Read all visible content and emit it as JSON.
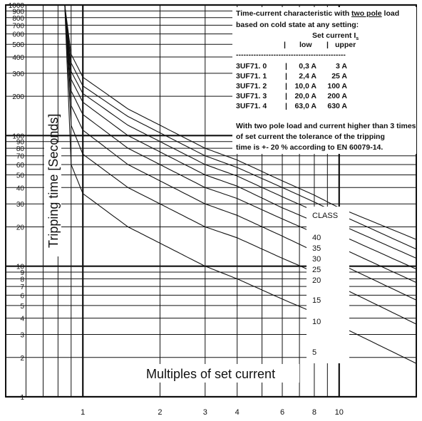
{
  "chart_data": {
    "type": "line",
    "xlabel": "Multiples of set current",
    "ylabel": "Tripping time [Seconds]",
    "x_scale": "log",
    "y_scale": "log",
    "xlim": [
      0.5,
      20
    ],
    "ylim": [
      1,
      1000
    ],
    "grid": true,
    "x_tick_labels": [
      {
        "v": 1,
        "t": "1"
      },
      {
        "v": 2,
        "t": "2"
      },
      {
        "v": 3,
        "t": "3"
      },
      {
        "v": 4,
        "t": "4"
      },
      {
        "v": 6,
        "t": "6"
      },
      {
        "v": 8,
        "t": "8"
      },
      {
        "v": 10,
        "t": "10"
      }
    ],
    "y_tick_labels": [
      {
        "v": 1000,
        "t": "1000"
      },
      {
        "v": 900,
        "t": "900"
      },
      {
        "v": 800,
        "t": "800"
      },
      {
        "v": 700,
        "t": "700"
      },
      {
        "v": 600,
        "t": "600"
      },
      {
        "v": 500,
        "t": "500"
      },
      {
        "v": 400,
        "t": "400"
      },
      {
        "v": 300,
        "t": "300"
      },
      {
        "v": 200,
        "t": "200"
      },
      {
        "v": 100,
        "t": "100"
      },
      {
        "v": 90,
        "t": "90"
      },
      {
        "v": 80,
        "t": "80"
      },
      {
        "v": 70,
        "t": "70"
      },
      {
        "v": 60,
        "t": "60"
      },
      {
        "v": 50,
        "t": "50"
      },
      {
        "v": 40,
        "t": "40"
      },
      {
        "v": 30,
        "t": "30"
      },
      {
        "v": 20,
        "t": "20"
      },
      {
        "v": 10,
        "t": "10"
      },
      {
        "v": 9,
        "t": "9"
      },
      {
        "v": 8,
        "t": "8"
      },
      {
        "v": 7,
        "t": "7"
      },
      {
        "v": 6,
        "t": "6"
      },
      {
        "v": 5,
        "t": "5"
      },
      {
        "v": 4,
        "t": "4"
      },
      {
        "v": 3,
        "t": "3"
      },
      {
        "v": 2,
        "t": "2"
      },
      {
        "v": 1,
        "t": "1"
      }
    ],
    "series": [
      {
        "name": "40",
        "x": [
          0.85,
          0.9,
          1.0,
          1.5,
          2,
          3,
          4,
          6,
          8,
          10,
          20
        ],
        "y": [
          1000,
          420,
          280,
          160,
          120,
          80,
          65,
          45,
          35,
          28,
          16
        ]
      },
      {
        "name": "35",
        "x": [
          0.85,
          0.9,
          1.0,
          1.5,
          2,
          3,
          4,
          6,
          8,
          10,
          20
        ],
        "y": [
          1000,
          360,
          240,
          140,
          105,
          70,
          57,
          40,
          31,
          25,
          13.5
        ]
      },
      {
        "name": "30",
        "x": [
          0.85,
          0.9,
          1.0,
          1.5,
          2,
          3,
          4,
          6,
          8,
          10,
          20
        ],
        "y": [
          1000,
          310,
          210,
          120,
          90,
          60,
          49,
          34,
          26.5,
          21,
          11.5
        ]
      },
      {
        "name": "25",
        "x": [
          0.85,
          0.9,
          1.0,
          1.5,
          2,
          3,
          4,
          6,
          8,
          10,
          20
        ],
        "y": [
          1000,
          270,
          180,
          100,
          75,
          50,
          41,
          28,
          22,
          17.5,
          9.5
        ]
      },
      {
        "name": "20",
        "x": [
          0.85,
          0.9,
          1.0,
          1.5,
          2,
          3,
          4,
          6,
          8,
          10,
          20
        ],
        "y": [
          1000,
          220,
          145,
          80,
          60,
          40,
          33,
          23,
          18,
          14,
          7.5
        ]
      },
      {
        "name": "15",
        "x": [
          0.85,
          0.9,
          1.0,
          1.5,
          2,
          3,
          4,
          6,
          8,
          10,
          20
        ],
        "y": [
          1000,
          170,
          110,
          60,
          45,
          30,
          24.5,
          17,
          13,
          10.5,
          5.5
        ]
      },
      {
        "name": "10",
        "x": [
          0.85,
          0.9,
          1.0,
          1.5,
          2,
          3,
          4,
          6,
          8,
          10,
          20
        ],
        "y": [
          1000,
          120,
          72,
          40,
          30,
          20,
          16.5,
          11.5,
          9,
          7,
          3.6
        ]
      },
      {
        "name": "5",
        "x": [
          0.85,
          0.9,
          1.0,
          1.5,
          2,
          3,
          4,
          6,
          8,
          10,
          20
        ],
        "y": [
          1000,
          60,
          36,
          20,
          15,
          10,
          8,
          5.6,
          4.4,
          3.5,
          1.8
        ]
      }
    ]
  },
  "class_label": "CLASS",
  "annotations": {
    "line1_prefix": "Time-current characteristic with ",
    "line1_underlined": "two pole",
    "line1_suffix": " load",
    "line2": "based on cold state at any setting:",
    "set_current_header": "Set current I",
    "set_current_sub": "s",
    "col_low": "low",
    "col_upper": "upper",
    "col_sep1": "|",
    "col_sep2": "|",
    "divider": "--------------------------------------------",
    "table_rows": [
      {
        "model": "3UF71. 0",
        "low": "0,3 A",
        "upper": "3 A"
      },
      {
        "model": "3UF71. 1",
        "low": "2,4 A",
        "upper": "25 A"
      },
      {
        "model": "3UF71. 2",
        "low": "10,0 A",
        "upper": "100 A"
      },
      {
        "model": "3UF71. 3",
        "low": "20,0 A",
        "upper": "200 A"
      },
      {
        "model": "3UF71. 4",
        "low": "63,0 A",
        "upper": "630 A"
      }
    ],
    "tolerance_lines": [
      "With two pole load and current higher than 3 times",
      "of set current the tolerance of the tripping",
      "time is  +- 20 % according to EN 60079-14."
    ]
  }
}
